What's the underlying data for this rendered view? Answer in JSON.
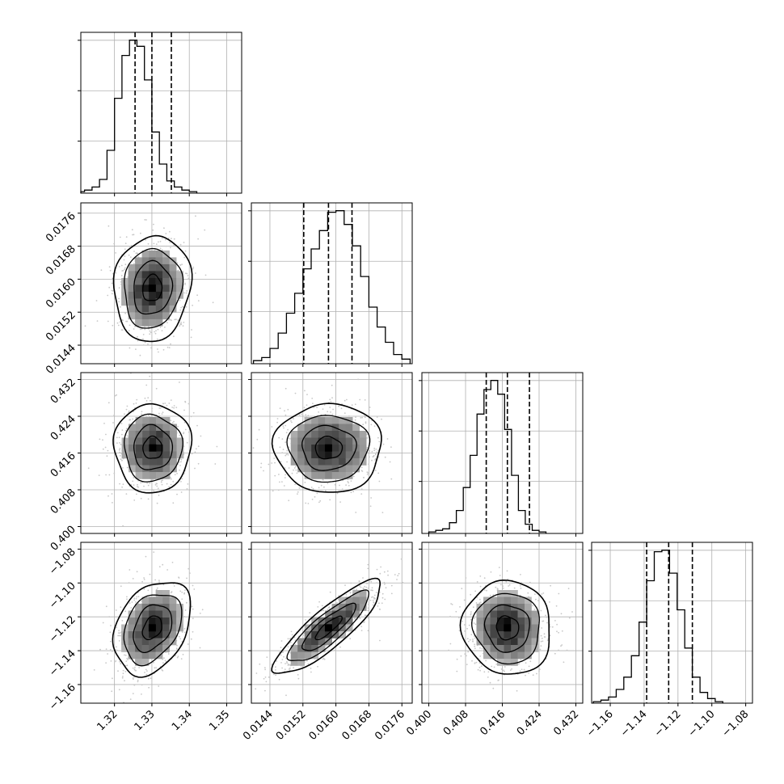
{
  "chart_data": {
    "type": "corner",
    "title": "",
    "parameters": [
      {
        "xlim": [
          1.311,
          1.354
        ],
        "ticks": [
          "1.32",
          "1.33",
          "1.34",
          "1.35"
        ],
        "tick_values": [
          1.32,
          1.33,
          1.34,
          1.35
        ],
        "quantiles": [
          1.3255,
          1.33,
          1.3352
        ],
        "hist_bin_edges_start": 1.31,
        "hist_bin_width": 0.002,
        "hist_counts": [
          1,
          2,
          4,
          9,
          28,
          62,
          90,
          100,
          96,
          74,
          40,
          19,
          8,
          4,
          2,
          1
        ],
        "hist_max": 103
      },
      {
        "xlim": [
          0.01395,
          0.01785
        ],
        "ticks": [
          "0.0144",
          "0.0152",
          "0.0160",
          "0.0168",
          "0.0176"
        ],
        "tick_values": [
          0.0144,
          0.0152,
          0.016,
          0.0168,
          0.0176
        ],
        "quantiles": [
          0.01522,
          0.01582,
          0.01639
        ],
        "hist_bin_edges_start": 0.014,
        "hist_bin_width": 0.0002,
        "hist_counts": [
          2,
          4,
          10,
          20,
          33,
          46,
          62,
          75,
          87,
          99,
          100,
          91,
          77,
          57,
          37,
          24,
          14,
          6,
          3
        ],
        "hist_max": 103
      },
      {
        "xlim": [
          0.3985,
          0.4335
        ],
        "ticks": [
          "0.400",
          "0.408",
          "0.416",
          "0.424",
          "0.432"
        ],
        "tick_values": [
          0.4,
          0.408,
          0.416,
          0.424,
          0.432
        ],
        "quantiles": [
          0.4125,
          0.4171,
          0.4219
        ],
        "hist_bin_edges_start": 0.4,
        "hist_bin_width": 0.0015,
        "hist_counts": [
          1,
          2,
          3,
          7,
          15,
          30,
          51,
          78,
          94,
          100,
          91,
          68,
          38,
          15,
          6,
          2,
          1
        ],
        "hist_max": 103
      },
      {
        "xlim": [
          -1.171,
          -1.076
        ],
        "ticks": [
          "−1.16",
          "−1.14",
          "−1.12",
          "−1.10",
          "−1.08"
        ],
        "tick_values": [
          -1.16,
          -1.14,
          -1.12,
          -1.1,
          -1.08
        ],
        "quantiles": [
          -1.1385,
          -1.1255,
          -1.1115
        ],
        "hist_bin_edges_start": -1.17,
        "hist_bin_width": 0.0045,
        "hist_counts": [
          1,
          2,
          4,
          9,
          17,
          31,
          53,
          80,
          99,
          100,
          85,
          61,
          36,
          17,
          7,
          3,
          1
        ],
        "hist_max": 103
      }
    ],
    "y_panels": [
      {
        "param": 1,
        "ylim": [
          0.01395,
          0.01785
        ],
        "ticks": [
          "0.0144",
          "0.0152",
          "0.0160",
          "0.0168",
          "0.0176"
        ],
        "tick_values": [
          0.0144,
          0.0152,
          0.016,
          0.0168,
          0.0176
        ]
      },
      {
        "param": 2,
        "ylim": [
          0.3985,
          0.4335
        ],
        "ticks": [
          "0.400",
          "0.408",
          "0.416",
          "0.424",
          "0.432"
        ],
        "tick_values": [
          0.4,
          0.408,
          0.416,
          0.424,
          0.432
        ]
      },
      {
        "param": 3,
        "ylim": [
          -1.171,
          -1.076
        ],
        "ticks": [
          "−1.08",
          "−1.10",
          "−1.12",
          "−1.14",
          "−1.16"
        ],
        "tick_values": [
          -1.08,
          -1.1,
          -1.12,
          -1.14,
          -1.16
        ]
      }
    ],
    "pairs": [
      {
        "x": 0,
        "y": 1,
        "center": [
          1.3301,
          0.01578
        ],
        "sigma": [
          0.0049,
          0.00061
        ],
        "rho": 0.08
      },
      {
        "x": 0,
        "y": 2,
        "center": [
          1.3302,
          0.4171
        ],
        "sigma": [
          0.0049,
          0.0046
        ],
        "rho": 0.0
      },
      {
        "x": 0,
        "y": 3,
        "center": [
          1.3301,
          -1.1265
        ],
        "sigma": [
          0.0049,
          0.0132
        ],
        "rho": 0.32
      },
      {
        "x": 1,
        "y": 2,
        "center": [
          0.01582,
          0.4171
        ],
        "sigma": [
          0.00062,
          0.0046
        ],
        "rho": 0.0
      },
      {
        "x": 1,
        "y": 3,
        "center": [
          0.01582,
          -1.1265
        ],
        "sigma": [
          0.00062,
          0.0132
        ],
        "rho": 0.86
      },
      {
        "x": 2,
        "y": 3,
        "center": [
          0.4171,
          -1.1265
        ],
        "sigma": [
          0.0046,
          0.0132
        ],
        "rho": -0.05
      }
    ],
    "contour_levels_sigma": [
      0.5,
      1.0,
      1.5,
      2.0
    ],
    "grid": true,
    "colors": {
      "axes": "#000000",
      "grid": "#b0b0b0",
      "points": "#c8c8c8",
      "line": "#000000"
    }
  }
}
